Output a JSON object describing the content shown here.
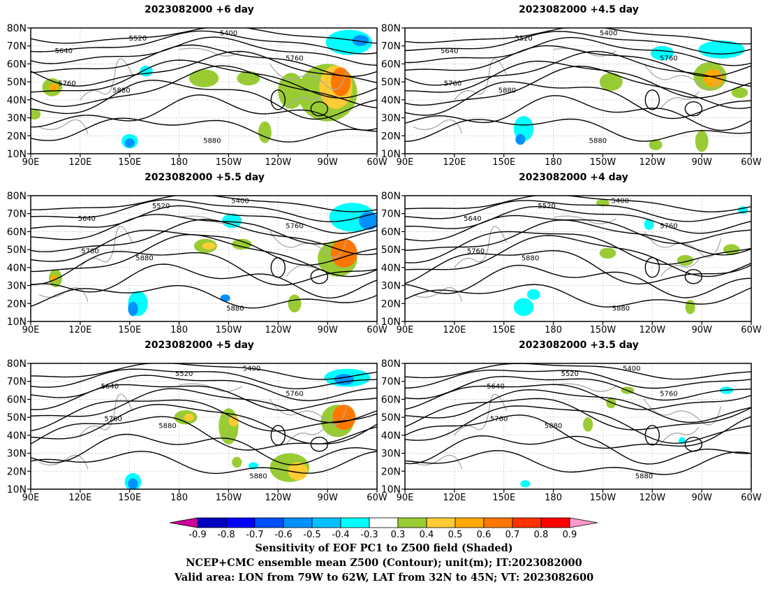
{
  "panels": [
    {
      "title": "2023082000  +6 day",
      "col": 0,
      "row": 0,
      "variant": 0
    },
    {
      "title": "2023082000  +4.5 day",
      "col": 1,
      "row": 0,
      "variant": 1
    },
    {
      "title": "2023082000  +5.5 day",
      "col": 0,
      "row": 1,
      "variant": 2
    },
    {
      "title": "2023082000  +4 day",
      "col": 1,
      "row": 1,
      "variant": 3
    },
    {
      "title": "2023082000  +5 day",
      "col": 0,
      "row": 2,
      "variant": 4
    },
    {
      "title": "2023082000  +3.5 day",
      "col": 1,
      "row": 2,
      "variant": 5
    }
  ],
  "axes": {
    "lat_labels": [
      "80N",
      "70N",
      "60N",
      "50N",
      "40N",
      "30N",
      "20N",
      "10N"
    ],
    "lon_labels": [
      "90E",
      "120E",
      "150E",
      "180",
      "150W",
      "120W",
      "90W",
      "60W"
    ],
    "lat_range": [
      10,
      80
    ],
    "lon_range_deg_east": [
      90,
      300
    ]
  },
  "contour_labels": [
    "5400",
    "5520",
    "5640",
    "5760",
    "5880"
  ],
  "colorbar": {
    "labels": [
      "-0.9",
      "-0.8",
      "-0.7",
      "-0.6",
      "-0.5",
      "-0.4",
      "-0.3",
      "0.3",
      "0.4",
      "0.5",
      "0.6",
      "0.7",
      "0.8",
      "0.9"
    ],
    "colors": [
      "#0000c0",
      "#0000ff",
      "#0050ff",
      "#0090ff",
      "#00c0ff",
      "#00ffff",
      "#ffffff",
      "#99cc33",
      "#ffcc33",
      "#ffaa00",
      "#ff7700",
      "#ff3300",
      "#ff0000"
    ],
    "under_color": "#cc0099",
    "over_color": "#ff99cc"
  },
  "footer": {
    "line1": "Sensitivity of EOF PC1 to Z500 field (Shaded)",
    "line2": "NCEP+CMC ensemble mean Z500 (Contour); unit(m); IT:2023082000",
    "line3": "Valid area: LON from 79W to 62W, LAT from 32N to 45N; VT: 2023082600"
  }
}
